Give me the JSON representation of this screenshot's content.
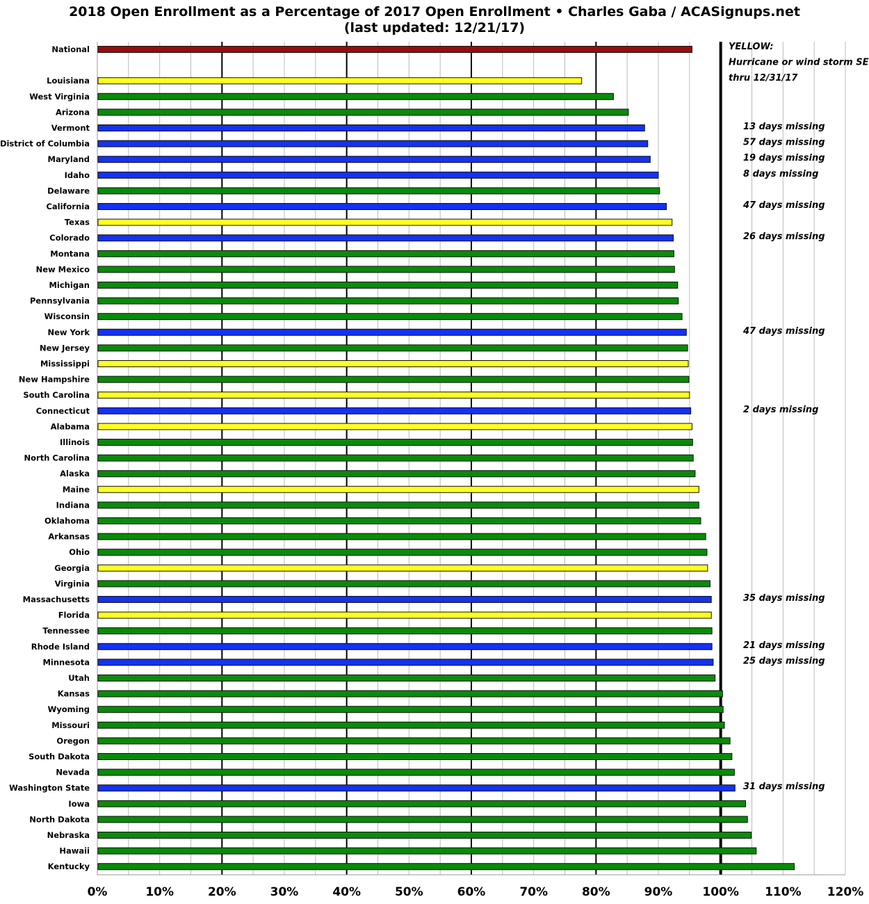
{
  "chart_data": {
    "type": "bar",
    "orientation": "horizontal",
    "title": "2018 Open Enrollment as a Percentage of 2017 Open Enrollment  •  Charles Gaba / ACASignups.net",
    "subtitle": "(last updated: 12/21/17)",
    "xlabel": "",
    "ylabel": "",
    "xlim": [
      0,
      120
    ],
    "x_ticks": [
      "0%",
      "10%",
      "20%",
      "30%",
      "40%",
      "50%",
      "60%",
      "70%",
      "80%",
      "90%",
      "100%",
      "110%",
      "120%"
    ],
    "grid": true,
    "colors": {
      "national": "#9a0c0c",
      "green": "#0a8a0a",
      "blue": "#1432f0",
      "yellow": "#ffff22"
    },
    "legend_note": [
      "YELLOW:",
      "Hurricane or wind storm SEP",
      "thru 12/31/17"
    ],
    "rows": [
      {
        "name": "National",
        "value": 95.4,
        "color": "national",
        "gap_after": true
      },
      {
        "name": "Louisiana",
        "value": 77.7,
        "color": "yellow"
      },
      {
        "name": "West Virginia",
        "value": 82.8,
        "color": "green"
      },
      {
        "name": "Arizona",
        "value": 85.2,
        "color": "green"
      },
      {
        "name": "Vermont",
        "value": 87.8,
        "color": "blue",
        "note": "13 days missing"
      },
      {
        "name": "District of Columbia",
        "value": 88.3,
        "color": "blue",
        "note": "57 days missing"
      },
      {
        "name": "Maryland",
        "value": 88.7,
        "color": "blue",
        "note": "19 days missing"
      },
      {
        "name": "Idaho",
        "value": 90.0,
        "color": "blue",
        "note": "8 days missing"
      },
      {
        "name": "Delaware",
        "value": 90.2,
        "color": "green"
      },
      {
        "name": "California",
        "value": 91.3,
        "color": "blue",
        "note": "47 days missing"
      },
      {
        "name": "Texas",
        "value": 92.2,
        "color": "yellow"
      },
      {
        "name": "Colorado",
        "value": 92.4,
        "color": "blue",
        "note": "26 days missing"
      },
      {
        "name": "Montana",
        "value": 92.5,
        "color": "green"
      },
      {
        "name": "New Mexico",
        "value": 92.6,
        "color": "green"
      },
      {
        "name": "Michigan",
        "value": 93.1,
        "color": "green"
      },
      {
        "name": "Pennsylvania",
        "value": 93.2,
        "color": "green"
      },
      {
        "name": "Wisconsin",
        "value": 93.8,
        "color": "green"
      },
      {
        "name": "New York",
        "value": 94.5,
        "color": "blue",
        "note": "47 days missing"
      },
      {
        "name": "New Jersey",
        "value": 94.7,
        "color": "green"
      },
      {
        "name": "Mississippi",
        "value": 94.8,
        "color": "yellow"
      },
      {
        "name": "New Hampshire",
        "value": 94.9,
        "color": "green"
      },
      {
        "name": "South Carolina",
        "value": 95.0,
        "color": "yellow"
      },
      {
        "name": "Connecticut",
        "value": 95.2,
        "color": "blue",
        "note": "2 days missing"
      },
      {
        "name": "Alabama",
        "value": 95.4,
        "color": "yellow"
      },
      {
        "name": "Illinois",
        "value": 95.5,
        "color": "green"
      },
      {
        "name": "North Carolina",
        "value": 95.6,
        "color": "green"
      },
      {
        "name": "Alaska",
        "value": 95.9,
        "color": "green"
      },
      {
        "name": "Maine",
        "value": 96.5,
        "color": "yellow"
      },
      {
        "name": "Indiana",
        "value": 96.5,
        "color": "green"
      },
      {
        "name": "Oklahoma",
        "value": 96.8,
        "color": "green"
      },
      {
        "name": "Arkansas",
        "value": 97.6,
        "color": "green"
      },
      {
        "name": "Ohio",
        "value": 97.8,
        "color": "green"
      },
      {
        "name": "Georgia",
        "value": 97.9,
        "color": "yellow"
      },
      {
        "name": "Virginia",
        "value": 98.3,
        "color": "green"
      },
      {
        "name": "Massachusetts",
        "value": 98.5,
        "color": "blue",
        "note": "35 days missing"
      },
      {
        "name": "Florida",
        "value": 98.5,
        "color": "yellow"
      },
      {
        "name": "Tennessee",
        "value": 98.6,
        "color": "green"
      },
      {
        "name": "Rhode Island",
        "value": 98.6,
        "color": "blue",
        "note": "21 days missing"
      },
      {
        "name": "Minnesota",
        "value": 98.8,
        "color": "blue",
        "note": "25 days missing"
      },
      {
        "name": "Utah",
        "value": 99.1,
        "color": "green"
      },
      {
        "name": "Kansas",
        "value": 100.3,
        "color": "green"
      },
      {
        "name": "Wyoming",
        "value": 100.4,
        "color": "green"
      },
      {
        "name": "Missouri",
        "value": 100.6,
        "color": "green"
      },
      {
        "name": "Oregon",
        "value": 101.5,
        "color": "green"
      },
      {
        "name": "South Dakota",
        "value": 101.8,
        "color": "green"
      },
      {
        "name": "Nevada",
        "value": 102.2,
        "color": "green"
      },
      {
        "name": "Washington State",
        "value": 102.3,
        "color": "blue",
        "note": "31 days missing"
      },
      {
        "name": "Iowa",
        "value": 104.0,
        "color": "green"
      },
      {
        "name": "North Dakota",
        "value": 104.3,
        "color": "green"
      },
      {
        "name": "Nebraska",
        "value": 104.9,
        "color": "green"
      },
      {
        "name": "Hawaii",
        "value": 105.7,
        "color": "green"
      },
      {
        "name": "Kentucky",
        "value": 111.8,
        "color": "green"
      }
    ]
  }
}
